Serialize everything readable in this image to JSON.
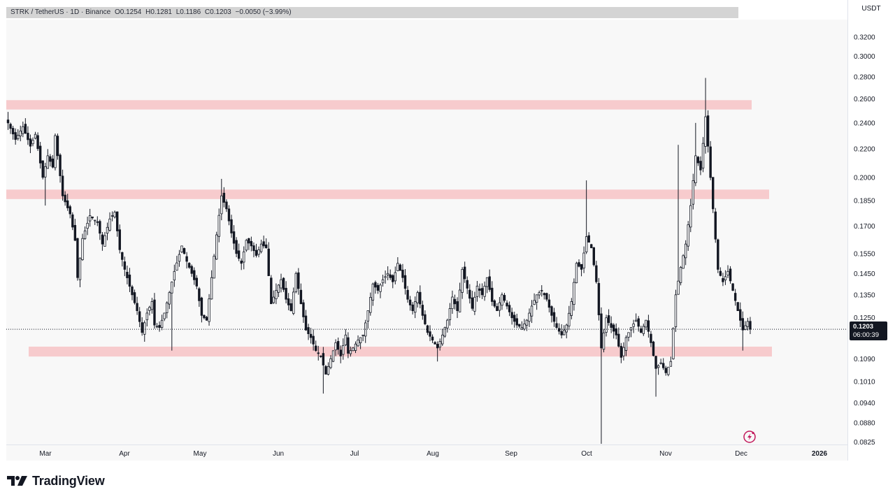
{
  "header": {
    "symbol": "STRK / TetherUS · 1D · Binance",
    "open": "O0.1254",
    "high": "H0.1281",
    "low": "L0.1186",
    "close": "C0.1203",
    "change": "−0.0050 (−3.99%)"
  },
  "currency": "USDT",
  "last_price": {
    "value": "0.1203",
    "countdown": "06:00:39"
  },
  "brand": {
    "name": "TradingView",
    "logo_icon": "tradingview-logo-icon"
  },
  "colors": {
    "background": "#f8f8f8",
    "candle": "#131722",
    "zone": "#f7c3c6",
    "flash_icon": "#c2185b"
  },
  "chart_data": {
    "type": "candlestick",
    "interval": "1D",
    "y_scale": "log",
    "y_range": [
      0.082,
      0.35
    ],
    "y_ticks": [
      "0.3200",
      "0.3000",
      "0.2800",
      "0.2600",
      "0.2400",
      "0.2200",
      "0.2000",
      "0.1850",
      "0.1700",
      "0.1550",
      "0.1450",
      "0.1350",
      "0.1250",
      "0.1090",
      "0.1010",
      "0.0940",
      "0.0880",
      "0.0825"
    ],
    "x_ticks": [
      {
        "label": "Mar",
        "bold": false
      },
      {
        "label": "Apr",
        "bold": false
      },
      {
        "label": "May",
        "bold": false
      },
      {
        "label": "Jun",
        "bold": false
      },
      {
        "label": "Jul",
        "bold": false
      },
      {
        "label": "Aug",
        "bold": false
      },
      {
        "label": "Sep",
        "bold": false
      },
      {
        "label": "Oct",
        "bold": false
      },
      {
        "label": "Nov",
        "bold": false
      },
      {
        "label": "Dec",
        "bold": false
      },
      {
        "label": "2026",
        "bold": true
      }
    ],
    "zones": [
      {
        "name": "resistance-zone-upper",
        "low": 0.251,
        "high": 0.259
      },
      {
        "name": "resistance-zone-middle",
        "low": 0.186,
        "high": 0.192
      },
      {
        "name": "support-zone",
        "low": 0.1098,
        "high": 0.1135
      }
    ],
    "last_price_line": 0.1203,
    "path": [
      [
        0,
        0.24
      ],
      [
        3,
        0.227
      ],
      [
        6,
        0.237
      ],
      [
        9,
        0.222
      ],
      [
        11,
        0.231
      ],
      [
        14,
        0.2
      ],
      [
        16,
        0.215
      ],
      [
        18,
        0.207
      ],
      [
        19,
        0.23
      ],
      [
        22,
        0.188
      ],
      [
        25,
        0.177
      ],
      [
        27,
        0.162
      ],
      [
        28,
        0.143
      ],
      [
        30,
        0.163
      ],
      [
        33,
        0.176
      ],
      [
        36,
        0.172
      ],
      [
        38,
        0.16
      ],
      [
        41,
        0.174
      ],
      [
        43,
        0.178
      ],
      [
        45,
        0.157
      ],
      [
        47,
        0.147
      ],
      [
        50,
        0.135
      ],
      [
        52,
        0.128
      ],
      [
        54,
        0.119
      ],
      [
        56,
        0.127
      ],
      [
        58,
        0.132
      ],
      [
        59,
        0.122
      ],
      [
        61,
        0.121
      ],
      [
        63,
        0.127
      ],
      [
        65,
        0.136
      ],
      [
        67,
        0.146
      ],
      [
        70,
        0.159
      ],
      [
        72,
        0.151
      ],
      [
        74,
        0.145
      ],
      [
        76,
        0.139
      ],
      [
        78,
        0.126
      ],
      [
        80,
        0.124
      ],
      [
        82,
        0.143
      ],
      [
        84,
        0.165
      ],
      [
        86,
        0.188
      ],
      [
        88,
        0.18
      ],
      [
        90,
        0.166
      ],
      [
        92,
        0.155
      ],
      [
        94,
        0.15
      ],
      [
        96,
        0.162
      ],
      [
        98,
        0.159
      ],
      [
        100,
        0.154
      ],
      [
        102,
        0.16
      ],
      [
        104,
        0.158
      ],
      [
        106,
        0.131
      ],
      [
        108,
        0.137
      ],
      [
        110,
        0.142
      ],
      [
        112,
        0.133
      ],
      [
        114,
        0.128
      ],
      [
        116,
        0.145
      ],
      [
        118,
        0.131
      ],
      [
        120,
        0.12
      ],
      [
        122,
        0.117
      ],
      [
        124,
        0.112
      ],
      [
        126,
        0.11
      ],
      [
        128,
        0.1035
      ],
      [
        130,
        0.109
      ],
      [
        132,
        0.115
      ],
      [
        134,
        0.11
      ],
      [
        136,
        0.118
      ],
      [
        137,
        0.111
      ],
      [
        139,
        0.113
      ],
      [
        141,
        0.116
      ],
      [
        143,
        0.118
      ],
      [
        145,
        0.128
      ],
      [
        147,
        0.14
      ],
      [
        149,
        0.137
      ],
      [
        151,
        0.142
      ],
      [
        153,
        0.145
      ],
      [
        155,
        0.141
      ],
      [
        157,
        0.15
      ],
      [
        159,
        0.143
      ],
      [
        161,
        0.133
      ],
      [
        163,
        0.128
      ],
      [
        165,
        0.136
      ],
      [
        167,
        0.126
      ],
      [
        169,
        0.119
      ],
      [
        171,
        0.116
      ],
      [
        173,
        0.113
      ],
      [
        175,
        0.118
      ],
      [
        177,
        0.124
      ],
      [
        179,
        0.134
      ],
      [
        181,
        0.128
      ],
      [
        183,
        0.147
      ],
      [
        185,
        0.138
      ],
      [
        187,
        0.129
      ],
      [
        189,
        0.139
      ],
      [
        191,
        0.135
      ],
      [
        193,
        0.143
      ],
      [
        195,
        0.132
      ],
      [
        197,
        0.128
      ],
      [
        199,
        0.135
      ],
      [
        201,
        0.13
      ],
      [
        203,
        0.125
      ],
      [
        205,
        0.122
      ],
      [
        207,
        0.121
      ],
      [
        209,
        0.124
      ],
      [
        211,
        0.13
      ],
      [
        213,
        0.135
      ],
      [
        215,
        0.137
      ],
      [
        217,
        0.133
      ],
      [
        219,
        0.126
      ],
      [
        221,
        0.121
      ],
      [
        223,
        0.118
      ],
      [
        225,
        0.122
      ],
      [
        227,
        0.132
      ],
      [
        229,
        0.15
      ],
      [
        231,
        0.147
      ],
      [
        233,
        0.164
      ],
      [
        235,
        0.158
      ],
      [
        237,
        0.141
      ],
      [
        239,
        0.113
      ],
      [
        241,
        0.125
      ],
      [
        243,
        0.121
      ],
      [
        245,
        0.118
      ],
      [
        247,
        0.1095
      ],
      [
        249,
        0.117
      ],
      [
        251,
        0.121
      ],
      [
        253,
        0.124
      ],
      [
        255,
        0.119
      ],
      [
        257,
        0.124
      ],
      [
        259,
        0.115
      ],
      [
        261,
        0.1055
      ],
      [
        263,
        0.1075
      ],
      [
        265,
        0.104
      ],
      [
        267,
        0.108
      ],
      [
        269,
        0.135
      ],
      [
        271,
        0.148
      ],
      [
        273,
        0.16
      ],
      [
        275,
        0.182
      ],
      [
        277,
        0.215
      ],
      [
        279,
        0.205
      ],
      [
        281,
        0.245
      ],
      [
        282,
        0.222
      ],
      [
        284,
        0.18
      ],
      [
        286,
        0.147
      ],
      [
        288,
        0.141
      ],
      [
        290,
        0.146
      ],
      [
        292,
        0.137
      ],
      [
        294,
        0.128
      ],
      [
        296,
        0.12
      ],
      [
        298,
        0.1235
      ],
      [
        299,
        0.1203
      ]
    ]
  }
}
